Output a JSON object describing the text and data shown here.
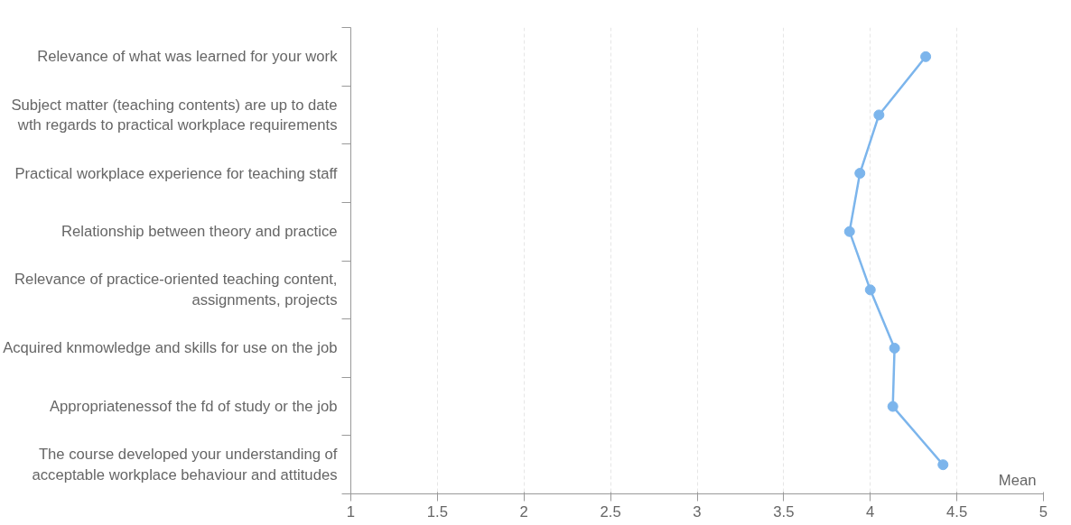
{
  "chart_data": {
    "type": "line",
    "orientation": "horizontal",
    "categories": [
      "Relevance of what was learned for your work",
      "Subject matter (teaching contents) are up to date\nwth regards to practical workplace requirements",
      "Practical workplace experience for teaching staff",
      "Relationship between theory and practice",
      "Relevance of practice-oriented teaching content,\nassignments, projects",
      "Acquired knmowledge and skills for use on the job",
      "Appropriatenessof the fd of study or the job",
      "The course developed your understanding of\nacceptable workplace behaviour and attitudes"
    ],
    "values": [
      4.32,
      4.05,
      3.94,
      3.88,
      4.0,
      4.14,
      4.13,
      4.42
    ],
    "color": "#7cb5ec",
    "marker": "circle",
    "line_style": "solid",
    "xlabel": "Mean",
    "xlim": [
      1,
      5
    ],
    "xticks": [
      1,
      1.5,
      2,
      2.5,
      3,
      3.5,
      4,
      4.5,
      5
    ],
    "grid": "x"
  }
}
